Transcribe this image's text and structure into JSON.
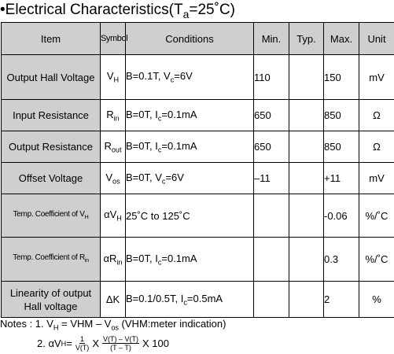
{
  "title": {
    "prefix": "•Electrical Characteristics(T",
    "sub": "a",
    "suffix": "=25˚C)"
  },
  "columns": {
    "item": "Item",
    "symbol": "Symbol",
    "conditions": "Conditions",
    "min": "Min.",
    "typ": "Typ.",
    "max": "Max.",
    "unit": "Unit"
  },
  "rows": [
    {
      "item": "Output Hall Voltage",
      "sym": "V",
      "sym_sub": "H",
      "cond": "B=0.1T, V",
      "cond_sub": "c",
      "cond_rest": "=6V",
      "min": "110",
      "typ": "",
      "max": "150",
      "unit": "mV"
    },
    {
      "item": "Input Resistance",
      "sym": "R",
      "sym_sub": "in",
      "cond": "B=0T, I",
      "cond_sub": "c",
      "cond_rest": "=0.1mA",
      "min": "650",
      "typ": "",
      "max": "850",
      "unit": "Ω"
    },
    {
      "item": "Output Resistance",
      "sym": "R",
      "sym_sub": "out",
      "cond": "B=0T, I",
      "cond_sub": "c",
      "cond_rest": "=0.1mA",
      "min": "650",
      "typ": "",
      "max": "850",
      "unit": "Ω"
    },
    {
      "item": "Offset Voltage",
      "sym": "V",
      "sym_sub": "os",
      "cond": "B=0T, V",
      "cond_sub": "c",
      "cond_rest": "=6V",
      "min": "–11",
      "typ": "",
      "max": "+11",
      "unit": "mV"
    },
    {
      "item": "Temp. Coefficient of V",
      "item_sub": "H",
      "sym": "αV",
      "sym_sub": "H",
      "cond": "25˚C to 125˚C",
      "cond_sub": "",
      "cond_rest": "",
      "min": "",
      "typ": "",
      "max": "-0.06",
      "unit": "%/˚C"
    },
    {
      "item": "Temp. Coefficient of R",
      "item_sub": "in",
      "sym": "αR",
      "sym_sub": "in",
      "cond": "B=0T, I",
      "cond_sub": "c",
      "cond_rest": "=0.1mA",
      "min": "",
      "typ": "",
      "max": "0.3",
      "unit": "%/˚C"
    },
    {
      "item": "Linearity of output Hall voltage",
      "sym": "ΔK",
      "sym_sub": "",
      "cond": "B=0.1/0.5T, I",
      "cond_sub": "c",
      "cond_rest": "=0.5mA",
      "min": "",
      "typ": "",
      "max": "2",
      "unit": "%"
    }
  ],
  "notes": {
    "line1_a": "Notes : 1. V",
    "line1_sub1": "H",
    "line1_b": " = VHM – V",
    "line1_sub2": "os",
    "line1_c": "  (VHM:meter indication)",
    "line2_a": "2. αV",
    "line2_sub": "H",
    "line2_eq": " = ",
    "frac1_num": "1",
    "frac1_den": "V(T)",
    "times1": " X ",
    "frac2_num": "V(T) – V(T)",
    "frac2_den": "(T – T)",
    "times2": " X 100"
  }
}
